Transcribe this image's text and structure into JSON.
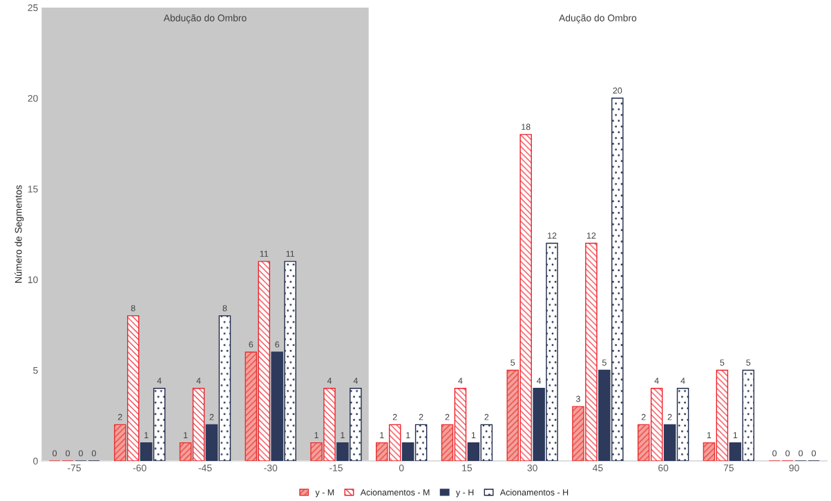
{
  "chart_data": {
    "type": "bar",
    "ylabel": "Número de Segmentos",
    "categories": [
      "-75",
      "-60",
      "-45",
      "-30",
      "-15",
      "0",
      "15",
      "30",
      "45",
      "60",
      "75",
      "90"
    ],
    "series": [
      {
        "name": "y - M",
        "color": "#e8302f",
        "values": [
          0,
          2,
          1,
          6,
          1,
          1,
          2,
          5,
          3,
          2,
          1,
          0
        ]
      },
      {
        "name": "Acionamentos - M",
        "color": "#f0202a",
        "values": [
          0,
          8,
          4,
          11,
          4,
          2,
          4,
          18,
          12,
          4,
          5,
          0
        ]
      },
      {
        "name": "y - H",
        "color": "#2d3a5c",
        "values": [
          0,
          1,
          2,
          6,
          1,
          1,
          1,
          4,
          5,
          2,
          1,
          0
        ]
      },
      {
        "name": "Acionamentos - H",
        "color": "#1f2a4a",
        "values": [
          0,
          4,
          8,
          11,
          4,
          2,
          2,
          12,
          20,
          4,
          5,
          0
        ]
      }
    ],
    "ylim": [
      0,
      25
    ],
    "yticks": [
      0,
      5,
      10,
      15,
      20,
      25
    ],
    "grid": "y",
    "legend": "bottom",
    "data_labels": true,
    "bands": [
      {
        "axis": "x",
        "from": "-75",
        "to": "-15",
        "label": "Abdução do Ombro",
        "color": "#c8c8c8"
      },
      {
        "axis": "x",
        "from": "0",
        "to": "90",
        "label": "Adução do Ombro",
        "color": "#ffffff"
      }
    ]
  }
}
